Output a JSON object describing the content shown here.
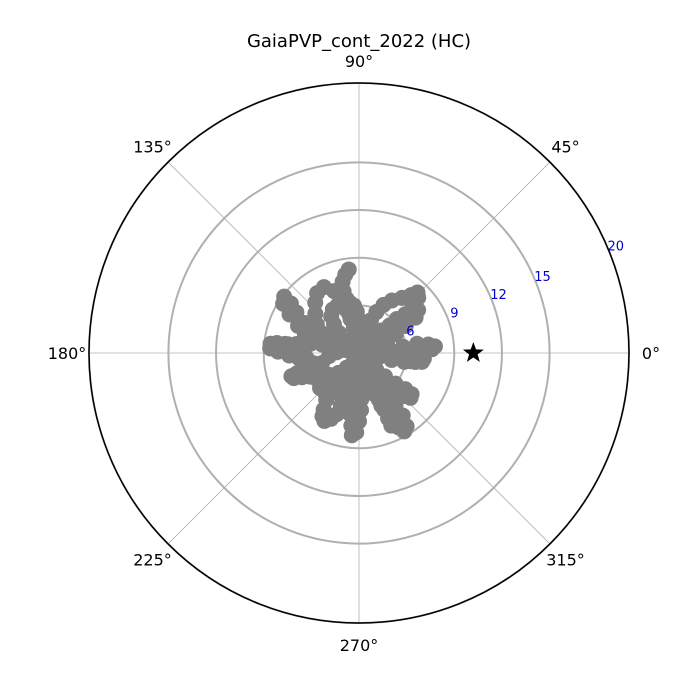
{
  "chart_data": {
    "type": "scatter",
    "projection": "polar",
    "title": "GaiaPVP_cont_2022 (HC)",
    "angle_ticks": [
      {
        "value": 0,
        "label": "0°"
      },
      {
        "value": 45,
        "label": "45°"
      },
      {
        "value": 90,
        "label": "90°"
      },
      {
        "value": 135,
        "label": "135°"
      },
      {
        "value": 180,
        "label": "180°"
      },
      {
        "value": 225,
        "label": "225°"
      },
      {
        "value": 270,
        "label": "270°"
      },
      {
        "value": 315,
        "label": "315°"
      }
    ],
    "radial_ticks": [
      {
        "value": 6,
        "label": "6"
      },
      {
        "value": 9,
        "label": "9"
      },
      {
        "value": 12,
        "label": "12"
      },
      {
        "value": 15,
        "label": "15"
      },
      {
        "value": 20,
        "label": "20"
      }
    ],
    "rlim": [
      3,
      20
    ],
    "grid": true,
    "colors": {
      "track": "#808080",
      "marker": "#000000",
      "ring": "#b0b0b0",
      "radial_label": "#0000cc",
      "frame": "#000000"
    },
    "series": [
      {
        "marker": "circle",
        "points": [
          [
            8.3,
            97
          ],
          [
            8.0,
            100
          ],
          [
            7.6,
            103
          ],
          [
            7.0,
            104
          ],
          [
            6.5,
            103
          ],
          [
            6.2,
            100
          ],
          [
            6.0,
            96
          ],
          [
            5.6,
            93
          ],
          [
            5.1,
            90
          ],
          [
            4.6,
            86
          ],
          [
            4.2,
            80
          ],
          [
            3.9,
            72
          ],
          [
            3.7,
            63
          ],
          [
            3.9,
            55
          ],
          [
            4.4,
            49
          ],
          [
            5.0,
            45
          ],
          [
            5.6,
            42
          ],
          [
            6.2,
            42
          ],
          [
            6.8,
            40
          ],
          [
            7.3,
            38
          ],
          [
            7.6,
            36
          ],
          [
            7.2,
            32
          ],
          [
            6.4,
            30
          ],
          [
            5.6,
            27
          ],
          [
            4.9,
            22
          ],
          [
            4.4,
            16
          ],
          [
            4.2,
            8
          ],
          [
            4.3,
            1
          ],
          [
            5.0,
            5
          ],
          [
            5.8,
            8
          ],
          [
            6.7,
            9
          ],
          [
            7.4,
            7
          ],
          [
            7.8,
            5
          ],
          [
            7.6,
            3
          ],
          [
            7.2,
            1
          ],
          [
            6.9,
            -2
          ],
          [
            7.1,
            -5
          ],
          [
            7.0,
            -8
          ],
          [
            6.3,
            -9
          ],
          [
            5.3,
            -7
          ],
          [
            4.4,
            -5
          ],
          [
            3.7,
            -1
          ],
          [
            3.2,
            6
          ],
          [
            3.0,
            17
          ],
          [
            3.0,
            30
          ],
          [
            3.0,
            50
          ],
          [
            3.0,
            70
          ],
          [
            3.0,
            90
          ],
          [
            3.1,
            110
          ],
          [
            3.5,
            126
          ],
          [
            4.1,
            136
          ],
          [
            4.6,
            144
          ],
          [
            5.3,
            150
          ],
          [
            6.1,
            153
          ],
          [
            6.9,
            151
          ],
          [
            7.7,
            147
          ],
          [
            8.3,
            144
          ],
          [
            8.9,
            143
          ],
          [
            8.7,
            147
          ],
          [
            8.0,
            151
          ],
          [
            7.2,
            156
          ],
          [
            6.6,
            161
          ],
          [
            6.3,
            166
          ],
          [
            6.4,
            171
          ],
          [
            7.0,
            172
          ],
          [
            7.7,
            173
          ],
          [
            8.2,
            173
          ],
          [
            8.6,
            174
          ],
          [
            8.6,
            177
          ],
          [
            8.1,
            179
          ],
          [
            7.4,
            182
          ],
          [
            6.8,
            185
          ],
          [
            6.5,
            190
          ],
          [
            6.5,
            196
          ],
          [
            7.1,
            198
          ],
          [
            7.5,
            199
          ],
          [
            7.4,
            201
          ],
          [
            6.9,
            203
          ],
          [
            6.4,
            206
          ],
          [
            6.0,
            210
          ],
          [
            5.7,
            214
          ],
          [
            5.3,
            220
          ],
          [
            5.3,
            227
          ],
          [
            5.9,
            231
          ],
          [
            6.6,
            235
          ],
          [
            7.2,
            238
          ],
          [
            7.6,
            240
          ],
          [
            7.8,
            243
          ],
          [
            7.5,
            247
          ],
          [
            7.1,
            250
          ],
          [
            6.5,
            251
          ],
          [
            5.8,
            250
          ],
          [
            5.1,
            250
          ],
          [
            4.4,
            250
          ],
          [
            3.8,
            250
          ],
          [
            3.3,
            250
          ],
          [
            3.0,
            254
          ],
          [
            3.0,
            265
          ],
          [
            3.2,
            278
          ],
          [
            3.8,
            286
          ],
          [
            4.6,
            290
          ],
          [
            5.4,
            292
          ],
          [
            6.2,
            293
          ],
          [
            6.9,
            294
          ],
          [
            7.5,
            294
          ],
          [
            8.0,
            294
          ],
          [
            8.3,
            298
          ],
          [
            7.8,
            302
          ],
          [
            7.1,
            304
          ],
          [
            6.4,
            306
          ],
          [
            5.8,
            308
          ],
          [
            5.2,
            310
          ],
          [
            4.7,
            312
          ],
          [
            4.5,
            316
          ],
          [
            5.2,
            318
          ],
          [
            6.0,
            320
          ],
          [
            6.7,
            322
          ],
          [
            7.2,
            322
          ],
          [
            7.3,
            319
          ],
          [
            6.9,
            316
          ],
          [
            6.3,
            314
          ],
          [
            5.6,
            312
          ],
          [
            4.9,
            310
          ],
          [
            4.2,
            306
          ],
          [
            3.6,
            300
          ],
          [
            3.2,
            290
          ],
          [
            3.0,
            275
          ],
          [
            3.0,
            260
          ],
          [
            3.0,
            240
          ],
          [
            3.0,
            220
          ],
          [
            3.0,
            200
          ],
          [
            3.1,
            180
          ],
          [
            3.4,
            165
          ],
          [
            4.0,
            158
          ],
          [
            4.8,
            154
          ],
          [
            5.6,
            152
          ],
          [
            6.2,
            146
          ],
          [
            6.7,
            138
          ],
          [
            7.2,
            131
          ],
          [
            7.6,
            125
          ],
          [
            7.7,
            118
          ],
          [
            7.2,
            112
          ],
          [
            6.5,
            108
          ],
          [
            5.8,
            106
          ],
          [
            5.2,
            104
          ],
          [
            4.6,
            102
          ],
          [
            4.2,
            98
          ],
          [
            3.9,
            90
          ],
          [
            4.1,
            80
          ],
          [
            4.6,
            74
          ],
          [
            5.2,
            70
          ],
          [
            5.8,
            67
          ],
          [
            6.4,
            63
          ],
          [
            6.9,
            58
          ],
          [
            7.4,
            52
          ],
          [
            7.9,
            48
          ],
          [
            8.3,
            46
          ],
          [
            8.1,
            43
          ],
          [
            7.5,
            41
          ],
          [
            6.9,
            39
          ],
          [
            6.3,
            37
          ],
          [
            5.7,
            34
          ],
          [
            5.1,
            30
          ],
          [
            4.6,
            25
          ],
          [
            4.3,
            18
          ],
          [
            4.2,
            10
          ],
          [
            4.5,
            4
          ],
          [
            5.2,
            1
          ],
          [
            6.0,
            -1
          ],
          [
            6.7,
            -3
          ],
          [
            7.0,
            -6
          ],
          [
            6.6,
            -9
          ],
          [
            5.9,
            -11
          ],
          [
            5.1,
            -12
          ],
          [
            4.3,
            -11
          ],
          [
            3.6,
            -8
          ],
          [
            3.1,
            -3
          ],
          [
            3.0,
            8
          ],
          [
            3.0,
            22
          ],
          [
            3.0,
            40
          ],
          [
            3.0,
            60
          ],
          [
            3.0,
            80
          ],
          [
            3.0,
            100
          ],
          [
            3.0,
            120
          ],
          [
            3.1,
            140
          ],
          [
            3.4,
            156
          ],
          [
            3.9,
            168
          ],
          [
            4.4,
            178
          ],
          [
            4.9,
            186
          ],
          [
            5.4,
            195
          ],
          [
            5.8,
            205
          ],
          [
            6.1,
            214
          ],
          [
            6.3,
            222
          ],
          [
            6.3,
            230
          ],
          [
            6.0,
            236
          ],
          [
            5.6,
            242
          ],
          [
            5.3,
            248
          ],
          [
            5.6,
            255
          ],
          [
            6.2,
            259
          ],
          [
            6.9,
            262
          ],
          [
            7.6,
            264
          ],
          [
            8.2,
            265
          ],
          [
            8.0,
            268
          ],
          [
            7.3,
            270
          ],
          [
            6.6,
            272
          ],
          [
            5.9,
            273
          ],
          [
            5.3,
            274
          ],
          [
            4.8,
            276
          ],
          [
            4.6,
            282
          ],
          [
            5.1,
            288
          ],
          [
            5.8,
            291
          ],
          [
            6.6,
            293
          ],
          [
            7.4,
            296
          ],
          [
            8.1,
            298
          ],
          [
            8.7,
            300
          ],
          [
            8.5,
            303
          ],
          [
            7.8,
            305
          ],
          [
            7.0,
            305
          ],
          [
            6.2,
            303
          ],
          [
            5.4,
            300
          ],
          [
            4.7,
            296
          ],
          [
            4.1,
            290
          ],
          [
            3.6,
            282
          ],
          [
            3.2,
            272
          ],
          [
            3.0,
            262
          ],
          [
            3.1,
            248
          ],
          [
            3.6,
            237
          ],
          [
            4.2,
            230
          ],
          [
            4.8,
            224
          ],
          [
            5.3,
            217
          ],
          [
            5.6,
            210
          ],
          [
            5.7,
            202
          ],
          [
            5.9,
            193
          ],
          [
            6.3,
            186
          ],
          [
            6.8,
            181
          ],
          [
            7.3,
            178
          ],
          [
            7.8,
            176
          ],
          [
            7.5,
            173
          ],
          [
            6.8,
            171
          ],
          [
            6.1,
            169
          ],
          [
            5.4,
            167
          ],
          [
            4.8,
            164
          ],
          [
            4.3,
            158
          ],
          [
            4.1,
            150
          ],
          [
            4.3,
            141
          ],
          [
            4.8,
            135
          ],
          [
            5.4,
            131
          ],
          [
            5.9,
            127
          ],
          [
            6.2,
            121
          ],
          [
            6.3,
            114
          ],
          [
            6.0,
            108
          ],
          [
            5.5,
            104
          ],
          [
            5.0,
            100
          ]
        ]
      },
      {
        "marker": "star",
        "points": [
          [
            10.2,
            0
          ]
        ]
      }
    ]
  }
}
